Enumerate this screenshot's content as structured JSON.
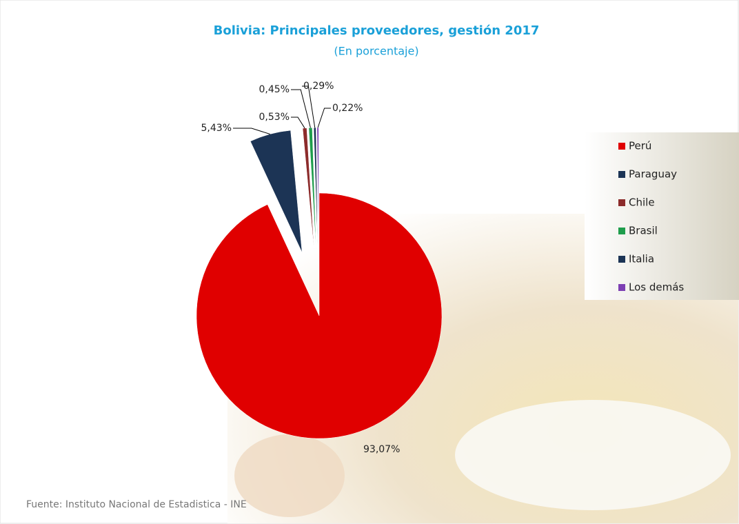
{
  "chart_data": {
    "type": "pie",
    "title": "Bolivia: Principales proveedores, gestión 2017",
    "subtitle": "(En porcentaje)",
    "categories": [
      "Perú",
      "Paraguay",
      "Chile",
      "Brasil",
      "Italia",
      "Los demás"
    ],
    "values": [
      93.07,
      5.43,
      0.53,
      0.45,
      0.29,
      0.22
    ],
    "value_labels": [
      "93,07%",
      "5,43%",
      "0,53%",
      "0,45%",
      "0,29%",
      "0,22%"
    ],
    "colors": [
      "#e00000",
      "#1c3455",
      "#8c2b2b",
      "#1f9d4c",
      "#1c3455",
      "#7d3fb3"
    ],
    "legend": "right",
    "source": "Fuente: Instituto Nacional de Estadistica - INE"
  }
}
